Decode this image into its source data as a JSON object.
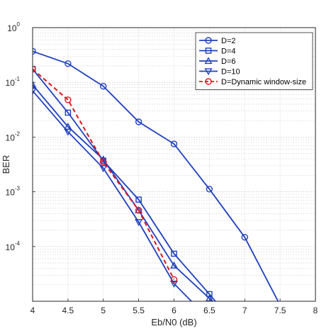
{
  "chart_data": {
    "type": "line",
    "xlabel": "Eb/N0 (dB)",
    "ylabel": "BER",
    "xlim": [
      4,
      8
    ],
    "ylim": [
      1e-05,
      1
    ],
    "yscale": "log",
    "grid": true,
    "minor_grid": true,
    "legend_position": "top-right",
    "x_ticks": [
      "4",
      "4.5",
      "5",
      "5.5",
      "6",
      "6.5",
      "7",
      "7.5",
      "8"
    ],
    "y_ticks": [
      {
        "base": "10",
        "exp": "0",
        "value": 1
      },
      {
        "base": "10",
        "exp": "-1",
        "value": 0.1
      },
      {
        "base": "10",
        "exp": "-2",
        "value": 0.01
      },
      {
        "base": "10",
        "exp": "-3",
        "value": 0.001
      },
      {
        "base": "10",
        "exp": "-4",
        "value": 0.0001
      }
    ],
    "series": [
      {
        "name": "D=2",
        "color": "#1f3fbf",
        "marker": "circle",
        "dashed": false,
        "x": [
          4,
          4.5,
          5,
          5.5,
          6,
          6.5,
          7,
          7.5
        ],
        "y": [
          0.37,
          0.22,
          0.085,
          0.019,
          0.0075,
          0.00112,
          0.000148,
          8.5e-06
        ]
      },
      {
        "name": "D=4",
        "color": "#1f3fbf",
        "marker": "square",
        "dashed": false,
        "x": [
          4,
          4.5,
          5,
          5.5,
          6,
          6.5,
          6.6
        ],
        "y": [
          0.175,
          0.028,
          0.0037,
          0.00072,
          7.4e-05,
          1.35e-05,
          9.5e-06
        ]
      },
      {
        "name": "D=6",
        "color": "#1f3fbf",
        "marker": "triangle-up",
        "dashed": false,
        "x": [
          4,
          4.5,
          5,
          5.5,
          6,
          6.5,
          6.6
        ],
        "y": [
          0.09,
          0.0155,
          0.0039,
          0.00046,
          4.5e-05,
          1.13e-05,
          8.5e-06
        ]
      },
      {
        "name": "D=10",
        "color": "#1f3fbf",
        "marker": "triangle-down",
        "dashed": false,
        "x": [
          4,
          4.5,
          5,
          5.5,
          6,
          6.3
        ],
        "y": [
          0.07,
          0.0125,
          0.0027,
          0.00028,
          2.1e-05,
          8.5e-06
        ]
      },
      {
        "name": "D=Dynamic window-size",
        "color": "#e0141e",
        "marker": "circle",
        "dashed": true,
        "x": [
          4,
          4.5,
          5,
          5.5,
          6
        ],
        "y": [
          0.175,
          0.048,
          0.0035,
          0.00046,
          2.5e-05
        ]
      }
    ]
  }
}
